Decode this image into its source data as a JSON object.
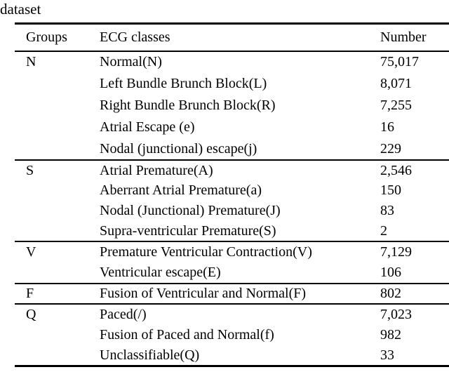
{
  "caption": {
    "text": "dataset"
  },
  "colors": {
    "text": "#000000",
    "background": "#ffffff",
    "rule": "#000000"
  },
  "table": {
    "headers": [
      "Groups",
      "ECG classes",
      "Number"
    ],
    "groups": [
      {
        "label": "N",
        "rows": [
          {
            "ecg_class": "Normal(N)",
            "number": "75,017"
          },
          {
            "ecg_class": "Left Bundle Brunch Block(L)",
            "number": "8,071"
          },
          {
            "ecg_class": "Right Bundle Brunch Block(R)",
            "number": "7,255"
          },
          {
            "ecg_class": "Atrial Escape (e)",
            "number": "16"
          },
          {
            "ecg_class": "Nodal (junctional) escape(j)",
            "number": "229"
          }
        ]
      },
      {
        "label": "S",
        "rows": [
          {
            "ecg_class": "Atrial Premature(A)",
            "number": "2,546"
          },
          {
            "ecg_class": "Aberrant Atrial Premature(a)",
            "number": "150"
          },
          {
            "ecg_class": "Nodal (Junctional) Premature(J)",
            "number": "83"
          },
          {
            "ecg_class": "Supra-ventricular Premature(S)",
            "number": "2"
          }
        ]
      },
      {
        "label": "V",
        "rows": [
          {
            "ecg_class": "Premature Ventricular Contraction(V)",
            "number": "7,129"
          },
          {
            "ecg_class": "Ventricular escape(E)",
            "number": "106"
          }
        ]
      },
      {
        "label": "F",
        "rows": [
          {
            "ecg_class": "Fusion of Ventricular and Normal(F)",
            "number": "802"
          }
        ]
      },
      {
        "label": "Q",
        "rows": [
          {
            "ecg_class": "Paced(/)",
            "number": "7,023"
          },
          {
            "ecg_class": "Fusion of Paced and Normal(f)",
            "number": "982"
          },
          {
            "ecg_class": "Unclassifiable(Q)",
            "number": "33"
          }
        ]
      }
    ]
  }
}
